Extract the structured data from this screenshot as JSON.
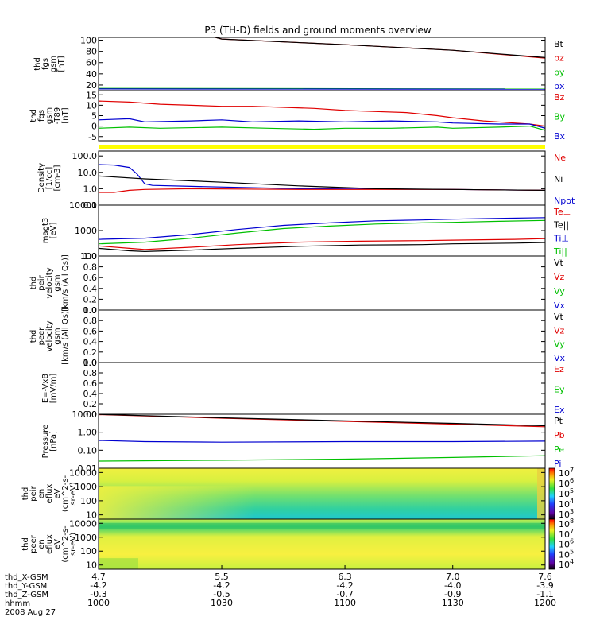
{
  "title": "P3 (TH-D) fields and ground moments overview",
  "colors": {
    "black": "#000000",
    "red": "#e00000",
    "green": "#00c000",
    "blue": "#0000d0"
  },
  "chart_data": [
    {
      "id": "fgs",
      "type": "line",
      "ylabel_lines": [
        "thd",
        "fgs",
        "gsm",
        "[nT]"
      ],
      "ylim": [
        10,
        105
      ],
      "scale": "linear",
      "yticks": [
        "20",
        "40",
        "60",
        "80",
        "100"
      ],
      "legend": [
        {
          "text": "Bt",
          "color": "black"
        },
        {
          "text": "bz",
          "color": "red"
        },
        {
          "text": "by",
          "color": "green"
        },
        {
          "text": "bx",
          "color": "blue"
        }
      ],
      "series": [
        {
          "color": "red",
          "x": [
            4.7,
            5.5,
            6.3,
            7.0,
            7.6
          ],
          "y": [
            160,
            102,
            92,
            82,
            68
          ]
        },
        {
          "color": "black",
          "x": [
            4.7,
            5.5,
            6.3,
            7.0,
            7.6
          ],
          "y": [
            160,
            102,
            92,
            82,
            69
          ]
        },
        {
          "color": "green",
          "x": [
            4.7,
            7.6
          ],
          "y": [
            14,
            13
          ]
        },
        {
          "color": "blue",
          "x": [
            4.7,
            7.6
          ],
          "y": [
            13,
            12.5
          ]
        }
      ]
    },
    {
      "id": "fgs_t89",
      "type": "line",
      "ylabel_lines": [
        "thd",
        "fgs",
        "gsm",
        "-T89",
        "[nT]"
      ],
      "ylim": [
        -7,
        17
      ],
      "scale": "linear",
      "yticks": [
        "-5",
        "0",
        "5",
        "10",
        "15"
      ],
      "legend": [
        {
          "text": "Bz",
          "color": "red"
        },
        {
          "text": "By",
          "color": "green"
        },
        {
          "text": "Bx",
          "color": "blue"
        }
      ],
      "series": [
        {
          "color": "red",
          "x": [
            4.7,
            4.9,
            5.1,
            5.3,
            5.5,
            5.7,
            5.9,
            6.1,
            6.3,
            6.5,
            6.7,
            6.9,
            7.0,
            7.2,
            7.4,
            7.5,
            7.6
          ],
          "y": [
            12,
            11.5,
            10.5,
            10,
            9.5,
            9.5,
            9,
            8.5,
            7.5,
            7,
            6.5,
            5,
            4,
            2.5,
            1.5,
            1,
            0
          ]
        },
        {
          "color": "blue",
          "x": [
            4.7,
            4.9,
            5.0,
            5.3,
            5.5,
            5.7,
            6.0,
            6.3,
            6.6,
            6.9,
            7.0,
            7.3,
            7.5,
            7.6
          ],
          "y": [
            3,
            3.5,
            2,
            2.5,
            3,
            2,
            2.5,
            2,
            2.5,
            2,
            1.5,
            1,
            1,
            -1
          ]
        },
        {
          "color": "green",
          "x": [
            4.7,
            4.9,
            5.1,
            5.5,
            5.8,
            6.1,
            6.3,
            6.6,
            6.9,
            7.0,
            7.3,
            7.5,
            7.6
          ],
          "y": [
            -1,
            -0.5,
            -1,
            -0.5,
            -1,
            -1.5,
            -1,
            -1,
            -0.5,
            -1,
            -0.5,
            0,
            -2
          ]
        }
      ]
    },
    {
      "id": "density",
      "type": "line",
      "ylabel_lines": [
        "Density",
        "[1/cc]",
        "[cm-3]"
      ],
      "ylim": [
        0.1,
        200
      ],
      "scale": "log",
      "yticks": [
        "0.1",
        "1.0",
        "10.0",
        "100.0"
      ],
      "legend": [
        {
          "text": "Ne",
          "color": "red"
        },
        {
          "text": "Ni",
          "color": "black"
        },
        {
          "text": "Npot",
          "color": "blue"
        }
      ],
      "series": [
        {
          "color": "blue",
          "x": [
            4.7,
            4.8,
            4.9,
            4.95,
            5.0,
            5.05,
            5.3,
            6.0,
            7.0,
            7.6
          ],
          "y": [
            30,
            28,
            20,
            8,
            2,
            1.6,
            1.4,
            1.0,
            0.9,
            0.8
          ]
        },
        {
          "color": "red",
          "x": [
            4.7,
            4.8,
            4.9,
            5.0,
            5.3,
            6.0,
            7.0,
            7.6
          ],
          "y": [
            0.6,
            0.6,
            0.8,
            0.9,
            1.0,
            0.9,
            0.9,
            0.8
          ]
        },
        {
          "color": "black",
          "x": [
            4.7,
            5.0,
            5.5,
            6.0,
            6.5,
            7.0,
            7.6
          ],
          "y": [
            6,
            4,
            2.5,
            1.5,
            1.0,
            0.9,
            0.8
          ]
        }
      ]
    },
    {
      "id": "temps",
      "type": "line",
      "ylabel_lines": [
        "magt3",
        "[eV]"
      ],
      "ylim": [
        100,
        10000
      ],
      "scale": "log",
      "yticks": [
        "100",
        "1000",
        "10000"
      ],
      "legend": [
        {
          "text": "Te⊥",
          "color": "red"
        },
        {
          "text": "Te||",
          "color": "black"
        },
        {
          "text": "Ti⊥",
          "color": "blue"
        },
        {
          "text": "Ti||",
          "color": "green"
        }
      ],
      "series": [
        {
          "color": "blue",
          "x": [
            4.7,
            5.0,
            5.3,
            5.6,
            5.9,
            6.2,
            6.5,
            6.8,
            7.0,
            7.3,
            7.6
          ],
          "y": [
            450,
            500,
            700,
            1100,
            1600,
            2000,
            2400,
            2600,
            2800,
            3000,
            3200
          ]
        },
        {
          "color": "green",
          "x": [
            4.7,
            5.0,
            5.3,
            5.6,
            5.9,
            6.2,
            6.5,
            6.8,
            7.0,
            7.3,
            7.6
          ],
          "y": [
            300,
            350,
            500,
            800,
            1200,
            1500,
            1800,
            2000,
            2100,
            2300,
            2500
          ]
        },
        {
          "color": "red",
          "x": [
            4.7,
            4.9,
            5.0,
            5.3,
            5.6,
            6.0,
            6.4,
            6.8,
            7.0,
            7.4,
            7.6
          ],
          "y": [
            250,
            200,
            180,
            220,
            280,
            350,
            380,
            400,
            420,
            450,
            480
          ]
        },
        {
          "color": "black",
          "x": [
            4.7,
            4.9,
            5.0,
            5.3,
            5.6,
            6.0,
            6.4,
            6.8,
            7.0,
            7.4,
            7.6
          ],
          "y": [
            200,
            160,
            150,
            170,
            200,
            240,
            270,
            280,
            300,
            320,
            340
          ]
        }
      ]
    },
    {
      "id": "peir_vel",
      "type": "line",
      "ylabel_lines": [
        "thd",
        "peir",
        "velocity",
        "gsm",
        "[km/s (All Qs)]"
      ],
      "ylim": [
        0,
        1
      ],
      "scale": "linear",
      "yticks": [
        "0.0",
        "0.2",
        "0.4",
        "0.6",
        "0.8",
        "1.0"
      ],
      "legend": [
        {
          "text": "Vt",
          "color": "black"
        },
        {
          "text": "Vz",
          "color": "red"
        },
        {
          "text": "Vy",
          "color": "green"
        },
        {
          "text": "Vx",
          "color": "blue"
        }
      ],
      "series": []
    },
    {
      "id": "peer_vel",
      "type": "line",
      "ylabel_lines": [
        "thd",
        "peer",
        "velocity",
        "gsm",
        "[km/s (All Qs)]"
      ],
      "ylim": [
        0,
        1
      ],
      "scale": "linear",
      "yticks": [
        "0.0",
        "0.2",
        "0.4",
        "0.6",
        "0.8",
        "1.0"
      ],
      "legend": [
        {
          "text": "Vt",
          "color": "black"
        },
        {
          "text": "Vz",
          "color": "red"
        },
        {
          "text": "Vy",
          "color": "green"
        },
        {
          "text": "Vx",
          "color": "blue"
        }
      ],
      "series": []
    },
    {
      "id": "efield",
      "type": "line",
      "ylabel_lines": [
        "E=-VxB",
        "[mV/m]"
      ],
      "ylim": [
        0,
        1
      ],
      "scale": "linear",
      "yticks": [
        "0.0",
        "0.2",
        "0.4",
        "0.6",
        "0.8",
        "1.0"
      ],
      "legend": [
        {
          "text": "Ez",
          "color": "red"
        },
        {
          "text": "Ey",
          "color": "green"
        },
        {
          "text": "Ex",
          "color": "blue"
        }
      ],
      "series": []
    },
    {
      "id": "pressure",
      "type": "line",
      "ylabel_lines": [
        "Pressure",
        "[nPa]"
      ],
      "ylim": [
        0.01,
        10
      ],
      "scale": "log",
      "yticks": [
        "0.01",
        "0.10",
        "1.00",
        "10.00"
      ],
      "legend": [
        {
          "text": "Pt",
          "color": "black"
        },
        {
          "text": "Pb",
          "color": "red"
        },
        {
          "text": "Pe",
          "color": "green"
        },
        {
          "text": "Pi",
          "color": "blue"
        }
      ],
      "series": [
        {
          "color": "red",
          "x": [
            4.7,
            5.5,
            6.3,
            7.0,
            7.6
          ],
          "y": [
            9.5,
            6.0,
            4.0,
            2.8,
            2.0
          ]
        },
        {
          "color": "black",
          "x": [
            4.7,
            5.5,
            6.3,
            7.0,
            7.6
          ],
          "y": [
            9.8,
            6.3,
            4.3,
            3.1,
            2.3
          ]
        },
        {
          "color": "blue",
          "x": [
            4.7,
            5.0,
            5.5,
            6.3,
            7.0,
            7.6
          ],
          "y": [
            0.35,
            0.3,
            0.28,
            0.3,
            0.3,
            0.32
          ]
        },
        {
          "color": "green",
          "x": [
            4.7,
            5.5,
            6.3,
            7.0,
            7.6
          ],
          "y": [
            0.025,
            0.028,
            0.032,
            0.04,
            0.05
          ]
        }
      ]
    },
    {
      "id": "peir_en",
      "type": "heatmap",
      "ylabel_lines": [
        "thd",
        "peir",
        "en",
        "eflux",
        "eV",
        "(cm^2-s-",
        "sr-eV)"
      ],
      "ylim": [
        5,
        20000
      ],
      "scale": "log",
      "yticks": [
        "10",
        "100",
        "1000",
        "10000"
      ],
      "colorbar_ticks": [
        "10^3",
        "10^4",
        "10^5",
        "10^6",
        "10^7"
      ]
    },
    {
      "id": "peer_en",
      "type": "heatmap",
      "ylabel_lines": [
        "thd",
        "peer",
        "en",
        "eflux",
        "eV",
        "(cm^2-s-",
        "sr-eV)"
      ],
      "ylim": [
        5,
        20000
      ],
      "scale": "log",
      "yticks": [
        "10",
        "100",
        "1000",
        "10000"
      ],
      "colorbar_ticks": [
        "10^4",
        "10^5",
        "10^6",
        "10^7",
        "10^8"
      ]
    }
  ],
  "xaxis": {
    "ticks": [
      {
        "x": "4.7",
        "y": "-4.2",
        "z": "-0.3",
        "hhmm": "1000"
      },
      {
        "x": "5.5",
        "y": "-4.2",
        "z": "-0.5",
        "hhmm": "1030"
      },
      {
        "x": "6.3",
        "y": "-4.2",
        "z": "-0.7",
        "hhmm": "1100"
      },
      {
        "x": "7.0",
        "y": "-4.0",
        "z": "-0.9",
        "hhmm": "1130"
      },
      {
        "x": "7.6",
        "y": "-3.9",
        "z": "-1.1",
        "hhmm": "1200"
      }
    ],
    "row_labels": [
      "thd_X-GSM",
      "thd_Y-GSM",
      "thd_Z-GSM",
      "hhmm"
    ],
    "date": "2008 Aug 27"
  }
}
